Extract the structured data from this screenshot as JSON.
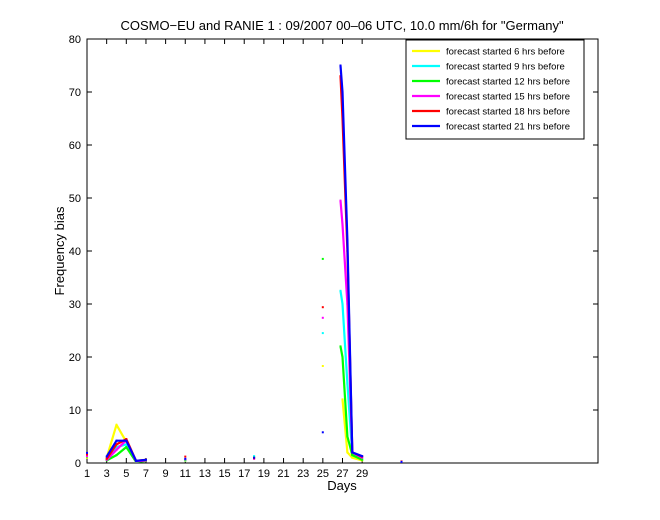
{
  "chart_data": {
    "type": "line",
    "title": "COSMO−EU and RANIE 1 : 09/2007 00–06 UTC, 10.0 mm/6h for \"Germany\"",
    "xlabel": "Days",
    "ylabel": "Frequency bias",
    "xlim": [
      1,
      53
    ],
    "ylim": [
      0,
      80
    ],
    "x_ticks": [
      "1",
      "3",
      "5",
      "7",
      "9",
      "11",
      "13",
      "15",
      "17",
      "19",
      "21",
      "23",
      "25",
      "27",
      "29"
    ],
    "y_ticks": [
      "0",
      "10",
      "20",
      "30",
      "40",
      "50",
      "60",
      "70",
      "80"
    ],
    "grid": false,
    "legend_position": "top-right",
    "series": [
      {
        "name": "forecast started 6 hrs before",
        "color": "#ffff00",
        "points": [
          [
            1,
            1.8
          ],
          [
            1,
            1.0
          ],
          [
            3,
            1.0
          ],
          [
            4,
            7.2
          ],
          [
            5,
            4.0
          ],
          [
            6,
            0.3
          ],
          [
            7,
            0.6
          ],
          [
            11,
            0.4
          ],
          [
            18,
            1.2
          ],
          [
            25,
            18.3
          ],
          [
            27,
            12.0
          ],
          [
            27.5,
            2.0
          ],
          [
            28,
            1.0
          ],
          [
            29,
            0.5
          ],
          [
            33,
            0.2
          ]
        ],
        "segments": [
          [
            [
              3,
              1.0
            ],
            [
              4,
              7.2
            ],
            [
              5,
              4.0
            ],
            [
              6,
              0.3
            ],
            [
              7,
              0.6
            ]
          ],
          [
            [
              27,
              12.0
            ],
            [
              27.5,
              2.0
            ],
            [
              28,
              1.0
            ],
            [
              29,
              0.5
            ]
          ]
        ]
      },
      {
        "name": "forecast started 9 hrs before",
        "color": "#00ffff",
        "points": [
          [
            1,
            1.5
          ],
          [
            3,
            0.8
          ],
          [
            4,
            3.0
          ],
          [
            5,
            3.5
          ],
          [
            6,
            0.2
          ],
          [
            7,
            0.5
          ],
          [
            11,
            0.5
          ],
          [
            18,
            1.3
          ],
          [
            25,
            24.5
          ],
          [
            26.8,
            32.5
          ],
          [
            27,
            30.0
          ],
          [
            27.5,
            15.0
          ],
          [
            28,
            1.5
          ],
          [
            29,
            0.8
          ],
          [
            33,
            0.2
          ]
        ],
        "segments": [
          [
            [
              3,
              0.8
            ],
            [
              4,
              3.0
            ],
            [
              5,
              3.5
            ],
            [
              6,
              0.2
            ],
            [
              7,
              0.5
            ]
          ],
          [
            [
              26.8,
              32.5
            ],
            [
              27,
              30.0
            ],
            [
              27.5,
              15.0
            ],
            [
              28,
              1.5
            ],
            [
              29,
              0.8
            ]
          ]
        ]
      },
      {
        "name": "forecast started 12 hrs before",
        "color": "#00ff00",
        "points": [
          [
            1,
            1.2
          ],
          [
            3,
            0.5
          ],
          [
            4,
            1.5
          ],
          [
            5,
            3.0
          ],
          [
            6,
            0.2
          ],
          [
            7,
            0.4
          ],
          [
            11,
            0.6
          ],
          [
            18,
            1.0
          ],
          [
            25,
            38.5
          ],
          [
            26.8,
            22.0
          ],
          [
            27,
            20.0
          ],
          [
            27.5,
            5.0
          ],
          [
            28,
            1.5
          ],
          [
            29,
            0.6
          ],
          [
            33,
            0.2
          ]
        ],
        "segments": [
          [
            [
              3,
              0.5
            ],
            [
              4,
              1.5
            ],
            [
              5,
              3.0
            ],
            [
              6,
              0.2
            ],
            [
              7,
              0.4
            ]
          ],
          [
            [
              26.8,
              22.0
            ],
            [
              27,
              20.0
            ],
            [
              27.5,
              5.0
            ],
            [
              28,
              1.5
            ],
            [
              29,
              0.6
            ]
          ]
        ]
      },
      {
        "name": "forecast started 15 hrs before",
        "color": "#ff00ff",
        "points": [
          [
            1,
            1.3
          ],
          [
            3,
            0.6
          ],
          [
            4,
            2.5
          ],
          [
            5,
            4.3
          ],
          [
            6,
            0.3
          ],
          [
            7,
            0.5
          ],
          [
            11,
            0.7
          ],
          [
            18,
            0.8
          ],
          [
            25,
            27.4
          ],
          [
            26.8,
            49.5
          ],
          [
            27,
            45.0
          ],
          [
            27.5,
            30.0
          ],
          [
            28,
            2.0
          ],
          [
            29,
            1.0
          ],
          [
            33,
            0.2
          ]
        ],
        "segments": [
          [
            [
              3,
              0.6
            ],
            [
              4,
              2.5
            ],
            [
              5,
              4.3
            ],
            [
              6,
              0.3
            ],
            [
              7,
              0.5
            ]
          ],
          [
            [
              26.8,
              49.5
            ],
            [
              27,
              45.0
            ],
            [
              27.5,
              30.0
            ],
            [
              28,
              2.0
            ],
            [
              29,
              1.0
            ]
          ]
        ]
      },
      {
        "name": "forecast started 18 hrs before",
        "color": "#ff0000",
        "points": [
          [
            1,
            1.6
          ],
          [
            3,
            0.8
          ],
          [
            4,
            3.5
          ],
          [
            5,
            4.5
          ],
          [
            6,
            0.4
          ],
          [
            7,
            0.6
          ],
          [
            11,
            1.2
          ],
          [
            18,
            0.9
          ],
          [
            25,
            29.4
          ],
          [
            26.8,
            73.0
          ],
          [
            27,
            65.0
          ],
          [
            27.5,
            40.0
          ],
          [
            28,
            2.0
          ],
          [
            29,
            1.2
          ],
          [
            33,
            0.3
          ]
        ],
        "segments": [
          [
            [
              3,
              0.8
            ],
            [
              4,
              3.5
            ],
            [
              5,
              4.5
            ],
            [
              6,
              0.4
            ],
            [
              7,
              0.6
            ]
          ],
          [
            [
              26.8,
              73.0
            ],
            [
              27,
              65.0
            ],
            [
              27.5,
              40.0
            ],
            [
              28,
              2.0
            ],
            [
              29,
              1.2
            ]
          ]
        ]
      },
      {
        "name": "forecast started 21 hrs before",
        "color": "#0000ff",
        "points": [
          [
            1,
            1.9
          ],
          [
            3,
            1.2
          ],
          [
            4,
            4.2
          ],
          [
            5,
            4.2
          ],
          [
            6,
            0.4
          ],
          [
            7,
            0.6
          ],
          [
            11,
            0.8
          ],
          [
            18,
            1.0
          ],
          [
            25,
            5.8
          ],
          [
            26.8,
            75.0
          ],
          [
            27,
            70.0
          ],
          [
            27.5,
            42.0
          ],
          [
            28,
            2.0
          ],
          [
            29,
            1.3
          ],
          [
            33,
            0.2
          ]
        ],
        "segments": [
          [
            [
              3,
              1.2
            ],
            [
              4,
              4.2
            ],
            [
              5,
              4.2
            ],
            [
              6,
              0.4
            ],
            [
              7,
              0.6
            ]
          ],
          [
            [
              26.8,
              75.0
            ],
            [
              27,
              70.0
            ],
            [
              27.5,
              42.0
            ],
            [
              28,
              2.0
            ],
            [
              29,
              1.3
            ]
          ]
        ]
      }
    ]
  }
}
